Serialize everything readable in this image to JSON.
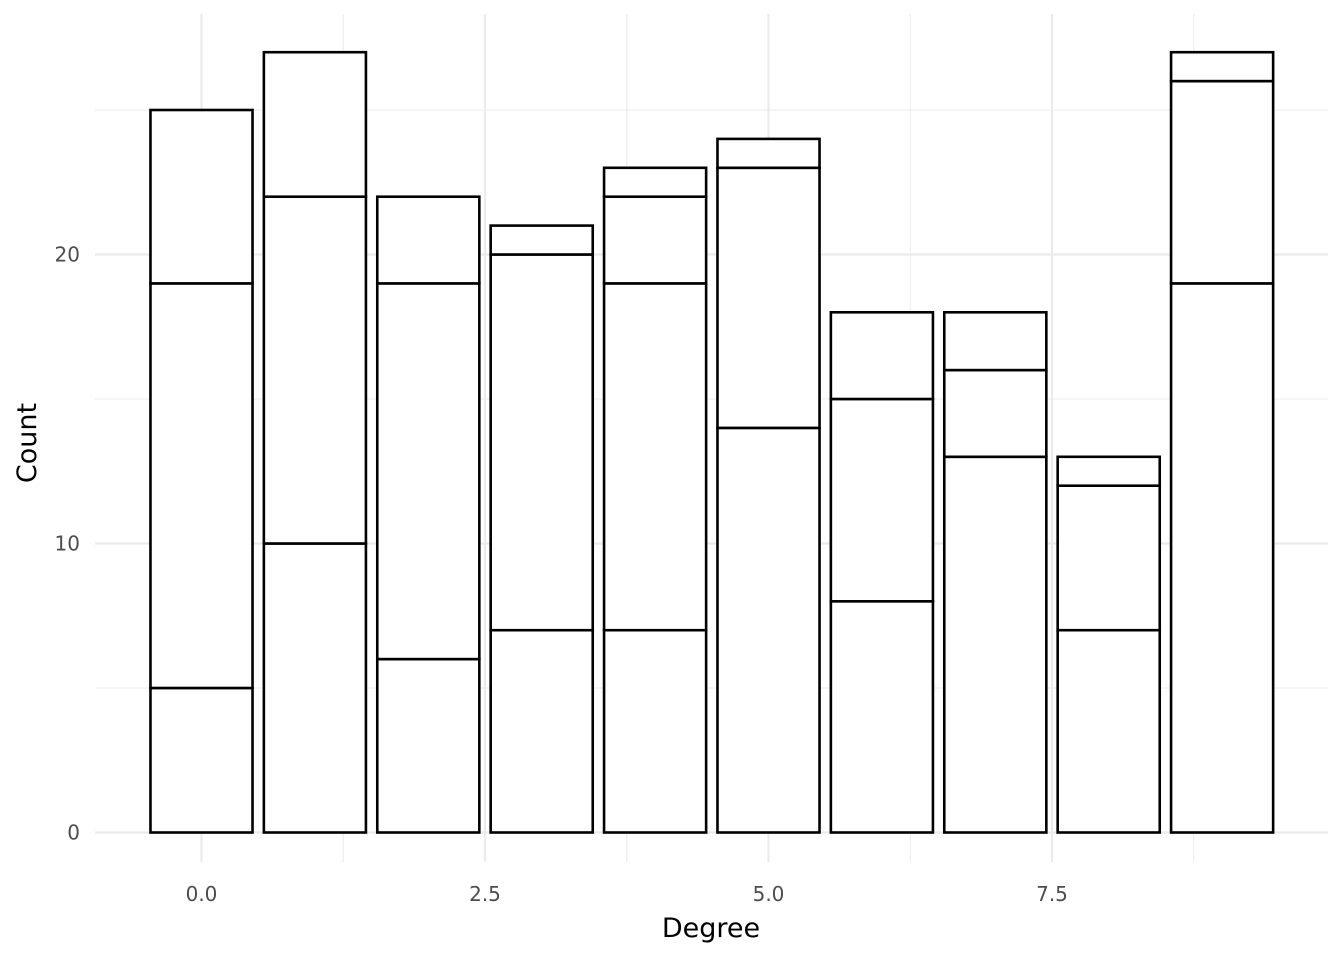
{
  "chart_data": {
    "type": "bar",
    "stacked": true,
    "x": [
      0,
      1,
      2,
      3,
      4,
      5,
      6,
      7,
      8,
      9
    ],
    "stacks": [
      [
        5,
        14,
        6
      ],
      [
        10,
        12,
        5
      ],
      [
        6,
        13,
        3
      ],
      [
        7,
        13,
        1
      ],
      [
        7,
        12,
        3,
        1
      ],
      [
        14,
        9,
        1
      ],
      [
        8,
        7,
        3
      ],
      [
        13,
        3,
        2
      ],
      [
        7,
        5,
        1
      ],
      [
        19,
        7,
        1
      ]
    ],
    "totals": [
      25,
      27,
      22,
      21,
      23,
      24,
      18,
      18,
      13,
      27
    ],
    "xlabel": "Degree",
    "ylabel": "Count",
    "xlim": [
      -0.5,
      9.5
    ],
    "ylim": [
      0,
      27
    ],
    "xticks": [
      0.0,
      2.5,
      5.0,
      7.5
    ],
    "xtick_labels": [
      "0.0",
      "2.5",
      "5.0",
      "7.5"
    ],
    "yticks": [
      0,
      10,
      20
    ],
    "ytick_labels": [
      "0",
      "10",
      "20"
    ],
    "grid": true,
    "legend": "none",
    "colors": {
      "fill": "#ffffff",
      "outline": "#000000",
      "grid": "#ebebeb",
      "tick_text": "#4d4d4d"
    }
  }
}
